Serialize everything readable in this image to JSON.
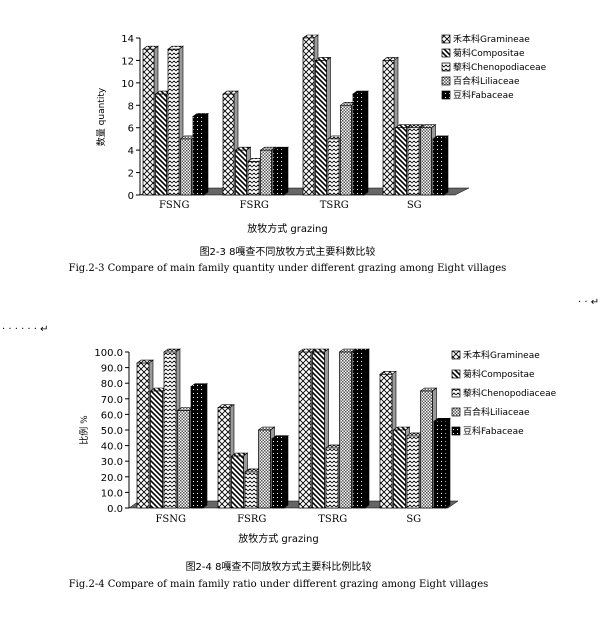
{
  "chart_data": [
    {
      "type": "bar",
      "categories": [
        "FSNG",
        "FSRG",
        "TSRG",
        "SG"
      ],
      "series": [
        {
          "name": "禾本科Gramineae",
          "values": [
            13,
            9,
            14,
            12
          ]
        },
        {
          "name": "菊科Compositae",
          "values": [
            9,
            4,
            12,
            6
          ]
        },
        {
          "name": "藜科Chenopodiaceae",
          "values": [
            13,
            3,
            5,
            6
          ]
        },
        {
          "name": "百合科Liliaceae",
          "values": [
            5,
            4,
            8,
            6
          ]
        },
        {
          "name": "豆科Fabaceae",
          "values": [
            7,
            4,
            9,
            5
          ]
        }
      ],
      "ylim": [
        0,
        14
      ],
      "yticks": [
        "0",
        "2",
        "4",
        "6",
        "8",
        "10",
        "12",
        "14"
      ],
      "xlabel": "放牧方式 grazing",
      "ylabel": "数量 quantity",
      "title_cn": "图2-3 8嘎查不同放牧方式主要科数比较",
      "title_en": "Fig.2-3 Compare of main family quantity under different grazing among Eight villages",
      "legend_position": "right",
      "grid": false
    },
    {
      "type": "bar",
      "categories": [
        "FSNG",
        "FSRG",
        "TSRG",
        "SG"
      ],
      "series": [
        {
          "name": "禾本科Gramineae",
          "values": [
            92.9,
            64.3,
            100,
            85.7
          ]
        },
        {
          "name": "菊科Compositae",
          "values": [
            75,
            33.3,
            100,
            50
          ]
        },
        {
          "name": "藜科Chenopodiaceae",
          "values": [
            100,
            23.1,
            38.5,
            46.2
          ]
        },
        {
          "name": "百合科Liliaceae",
          "values": [
            62.5,
            50,
            100,
            75
          ]
        },
        {
          "name": "豆科Fabaceae",
          "values": [
            77.8,
            44.4,
            100,
            55.6
          ]
        }
      ],
      "ylim": [
        0,
        100
      ],
      "yticks": [
        "0.0",
        "10.0",
        "20.0",
        "30.0",
        "40.0",
        "50.0",
        "60.0",
        "70.0",
        "80.0",
        "90.0",
        "100.0"
      ],
      "xlabel": "放牧方式 grazing",
      "ylabel": "比例 %",
      "title_cn": "图2-4 8嘎查不同放牧方式主要科比例比较",
      "title_en": "Fig.2-4 Compare of main family ratio under different grazing among Eight villages",
      "legend_position": "right",
      "grid": false
    }
  ],
  "decor": {
    "dots_left": "· · · · · · ↵",
    "dots_right": "· · ↵"
  }
}
